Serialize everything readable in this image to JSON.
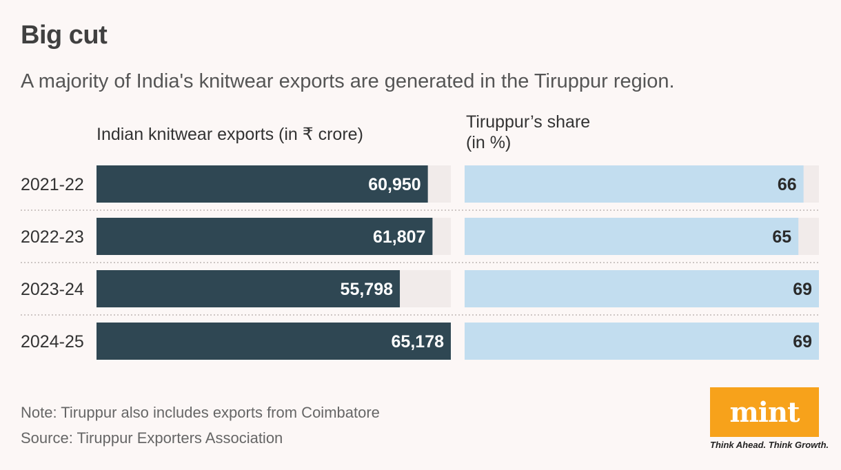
{
  "chart_data": {
    "type": "bar",
    "title": "Big cut",
    "subtitle": "A majority of India's knitwear exports are generated in the Tiruppur region.",
    "categories": [
      "2021-22",
      "2022-23",
      "2023-24",
      "2024-25"
    ],
    "series": [
      {
        "name": "Indian knitwear exports (in ₹ crore)",
        "values": [
          60950,
          61807,
          55798,
          65178
        ],
        "labels": [
          "60,950",
          "61,807",
          "55,798",
          "65,178"
        ],
        "max": 65178,
        "color": "#2f4753",
        "track_color": "#f1ebea"
      },
      {
        "name_line1": "Tiruppur’s share",
        "name_line2": "(in %)",
        "values": [
          66,
          65,
          69,
          69
        ],
        "labels": [
          "66",
          "65",
          "69",
          "69"
        ],
        "max": 69,
        "color": "#c2ddef",
        "track_color": "#f1ebea"
      }
    ]
  },
  "note": "Note: Tiruppur also includes exports from Coimbatore",
  "source": "Source: Tiruppur Exporters Association",
  "logo": {
    "text": "mint",
    "tagline": "Think Ahead. Think Growth."
  }
}
